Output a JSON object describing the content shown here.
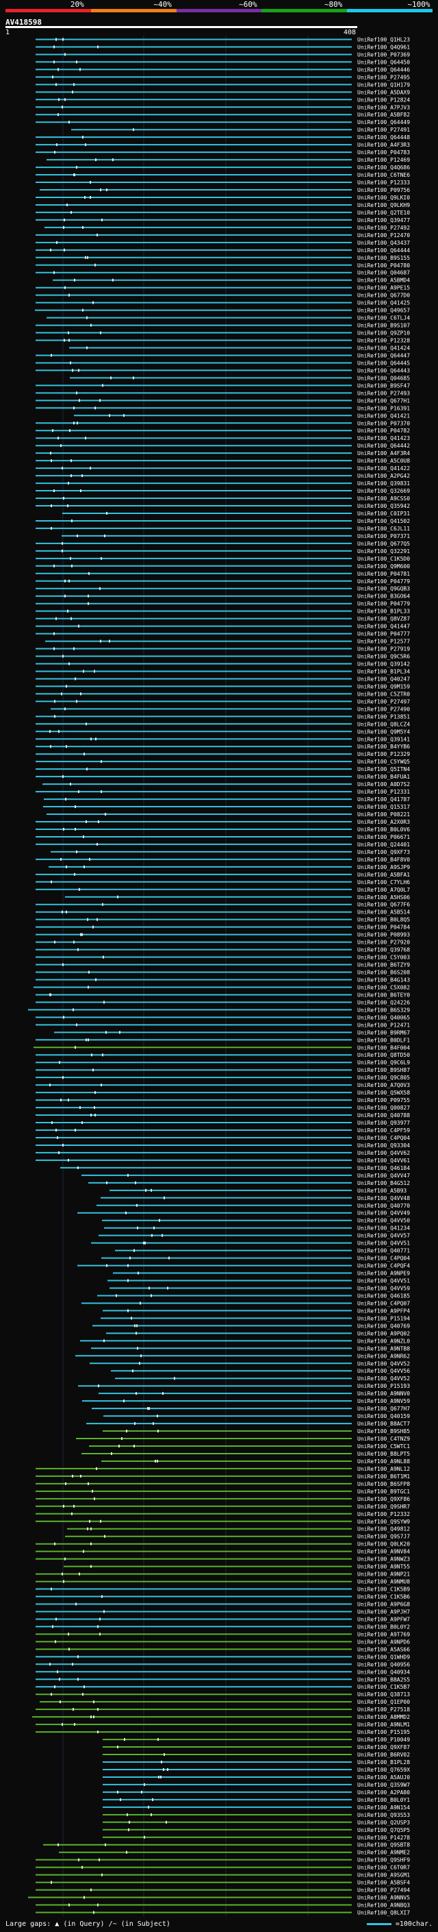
{
  "query": {
    "title": "AV418598",
    "start": "1",
    "end": "408"
  },
  "legend": {
    "labels": [
      "20%",
      "~40%",
      "~60%",
      "~80%",
      "~100%"
    ],
    "colors": [
      "#e8202a",
      "#f07f14",
      "#7a2ea0",
      "#16a416",
      "#20c8e8"
    ]
  },
  "colors": {
    "cyan": "#33c3e0",
    "green": "#5ab42a",
    "mark": "#e6e6e6"
  },
  "footer": {
    "label": "Large gaps:",
    "gap_query": "(in Query)",
    "gap_subject": "(in Subject)",
    "scale": "=100char."
  },
  "hits": [
    {
      "id": "UniRef100_Q1HL23",
      "c": "c"
    },
    {
      "id": "UniRef100_Q4Q961",
      "c": "c"
    },
    {
      "id": "UniRef100_P07369",
      "c": "c"
    },
    {
      "id": "UniRef100_Q64450",
      "c": "c"
    },
    {
      "id": "UniRef100_Q64446",
      "c": "c"
    },
    {
      "id": "UniRef100_P27495",
      "c": "c"
    },
    {
      "id": "UniRef100_Q1H179",
      "c": "c"
    },
    {
      "id": "UniRef100_A5DAX9",
      "c": "c"
    },
    {
      "id": "UniRef100_P12824",
      "c": "c"
    },
    {
      "id": "UniRef100_A7PJV3",
      "c": "c"
    },
    {
      "id": "UniRef100_A5BF82",
      "c": "c"
    },
    {
      "id": "UniRef100_Q64449",
      "c": "c"
    },
    {
      "id": "UniRef100_P27491",
      "c": "c"
    },
    {
      "id": "UniRef100_Q64448",
      "c": "c"
    },
    {
      "id": "UniRef100_A4F3R3",
      "c": "c"
    },
    {
      "id": "UniRef100_P04783",
      "c": "c"
    },
    {
      "id": "UniRef100_P12469",
      "c": "c"
    },
    {
      "id": "UniRef100_Q4Q686",
      "c": "c"
    },
    {
      "id": "UniRef100_C6TNE6",
      "c": "c"
    },
    {
      "id": "UniRef100_P12333",
      "c": "c"
    },
    {
      "id": "UniRef100_P09756",
      "c": "c"
    },
    {
      "id": "UniRef100_Q9LKI0",
      "c": "c"
    },
    {
      "id": "UniRef100_Q9LKH9",
      "c": "c"
    },
    {
      "id": "UniRef100_Q2TE10",
      "c": "c"
    },
    {
      "id": "UniRef100_Q39477",
      "c": "c"
    },
    {
      "id": "UniRef100_P27492",
      "c": "c"
    },
    {
      "id": "UniRef100_P12470",
      "c": "c"
    },
    {
      "id": "UniRef100_Q43437",
      "c": "c"
    },
    {
      "id": "UniRef100_Q64444",
      "c": "c"
    },
    {
      "id": "UniRef100_B9S155",
      "c": "c"
    },
    {
      "id": "UniRef100_P04780",
      "c": "c"
    },
    {
      "id": "UniRef100_Q04687",
      "c": "c"
    },
    {
      "id": "UniRef100_A5BMD4",
      "c": "c"
    },
    {
      "id": "UniRef100_A9PE15",
      "c": "c"
    },
    {
      "id": "UniRef100_Q677D0",
      "c": "c"
    },
    {
      "id": "UniRef100_Q41425",
      "c": "c"
    },
    {
      "id": "UniRef100_Q49657",
      "c": "c"
    },
    {
      "id": "UniRef100_C6TLJ4",
      "c": "c"
    },
    {
      "id": "UniRef100_B9S107",
      "c": "c"
    },
    {
      "id": "UniRef100_Q9ZP10",
      "c": "c"
    },
    {
      "id": "UniRef100_P12328",
      "c": "c"
    },
    {
      "id": "UniRef100_Q41424",
      "c": "c"
    },
    {
      "id": "UniRef100_Q64447",
      "c": "c"
    },
    {
      "id": "UniRef100_Q64445",
      "c": "c"
    },
    {
      "id": "UniRef100_Q64443",
      "c": "c"
    },
    {
      "id": "UniRef100_Q04685",
      "c": "c"
    },
    {
      "id": "UniRef100_B9SF47",
      "c": "c"
    },
    {
      "id": "UniRef100_P27493",
      "c": "c"
    },
    {
      "id": "UniRef100_Q677H1",
      "c": "c"
    },
    {
      "id": "UniRef100_P16391",
      "c": "c"
    },
    {
      "id": "UniRef100_Q41421",
      "c": "c"
    },
    {
      "id": "UniRef100_P07370",
      "c": "c"
    },
    {
      "id": "UniRef100_P04782",
      "c": "c"
    },
    {
      "id": "UniRef100_Q41423",
      "c": "c"
    },
    {
      "id": "UniRef100_Q64442",
      "c": "c"
    },
    {
      "id": "UniRef100_A4F3R4",
      "c": "c"
    },
    {
      "id": "UniRef100_A5C0U8",
      "c": "c"
    },
    {
      "id": "UniRef100_Q41422",
      "c": "c"
    },
    {
      "id": "UniRef100_A2PG42",
      "c": "c"
    },
    {
      "id": "UniRef100_Q39831",
      "c": "c"
    },
    {
      "id": "UniRef100_Q32669",
      "c": "c"
    },
    {
      "id": "UniRef100_A9CSS0",
      "c": "c"
    },
    {
      "id": "UniRef100_Q35942",
      "c": "c"
    },
    {
      "id": "UniRef100_C0IP31",
      "c": "c"
    },
    {
      "id": "UniRef100_Q41502",
      "c": "c"
    },
    {
      "id": "UniRef100_C6JL11",
      "c": "c"
    },
    {
      "id": "UniRef100_P07371",
      "c": "c"
    },
    {
      "id": "UniRef100_Q677Q5",
      "c": "c"
    },
    {
      "id": "UniRef100_Q32291",
      "c": "c"
    },
    {
      "id": "UniRef100_C1K5D0",
      "c": "c"
    },
    {
      "id": "UniRef100_Q9M600",
      "c": "c"
    },
    {
      "id": "UniRef100_P04781",
      "c": "c"
    },
    {
      "id": "UniRef100_P04779",
      "c": "c"
    },
    {
      "id": "UniRef100_Q9GQB3",
      "c": "c"
    },
    {
      "id": "UniRef100_B3GO64",
      "c": "c"
    },
    {
      "id": "UniRef100_P04779",
      "c": "c"
    },
    {
      "id": "UniRef100_B1PL33",
      "c": "c"
    },
    {
      "id": "UniRef100_Q8VZ87",
      "c": "c"
    },
    {
      "id": "UniRef100_Q41447",
      "c": "c"
    },
    {
      "id": "UniRef100_P04777",
      "c": "c"
    },
    {
      "id": "UniRef100_P12577",
      "c": "c"
    },
    {
      "id": "UniRef100_P27919",
      "c": "c"
    },
    {
      "id": "UniRef100_Q9C5R6",
      "c": "c"
    },
    {
      "id": "UniRef100_Q39142",
      "c": "c"
    },
    {
      "id": "UniRef100_B1PL34",
      "c": "c"
    },
    {
      "id": "UniRef100_Q40247",
      "c": "c"
    },
    {
      "id": "UniRef100_Q9M159",
      "c": "c"
    },
    {
      "id": "UniRef100_C5ZTR0",
      "c": "c"
    },
    {
      "id": "UniRef100_P27497",
      "c": "c"
    },
    {
      "id": "UniRef100_P27490",
      "c": "c"
    },
    {
      "id": "UniRef100_P13851",
      "c": "c"
    },
    {
      "id": "UniRef100_Q8LCZ4",
      "c": "c"
    },
    {
      "id": "UniRef100_Q9M5Y4",
      "c": "c"
    },
    {
      "id": "UniRef100_Q39141",
      "c": "c"
    },
    {
      "id": "UniRef100_B4YYB6",
      "c": "c"
    },
    {
      "id": "UniRef100_P12329",
      "c": "c"
    },
    {
      "id": "UniRef100_C5YWQ5",
      "c": "c"
    },
    {
      "id": "UniRef100_Q5ITN4",
      "c": "c"
    },
    {
      "id": "UniRef100_B4FUA1",
      "c": "c"
    },
    {
      "id": "UniRef100_A0D7S2",
      "c": "c"
    },
    {
      "id": "UniRef100_P12331",
      "c": "c"
    },
    {
      "id": "UniRef100_Q41787",
      "c": "c"
    },
    {
      "id": "UniRef100_Q15317",
      "c": "c"
    },
    {
      "id": "UniRef100_P08221",
      "c": "c"
    },
    {
      "id": "UniRef100_A2X0R3",
      "c": "c"
    },
    {
      "id": "UniRef100_B0L0V6",
      "c": "c"
    },
    {
      "id": "UniRef100_P06671",
      "c": "c"
    },
    {
      "id": "UniRef100_Q24401",
      "c": "c"
    },
    {
      "id": "UniRef100_Q9XF73",
      "c": "c"
    },
    {
      "id": "UniRef100_B4F8V0",
      "c": "c"
    },
    {
      "id": "UniRef100_A9SJP9",
      "c": "c"
    },
    {
      "id": "UniRef100_A5BFA1",
      "c": "c"
    },
    {
      "id": "UniRef100_C7YLH6",
      "c": "c"
    },
    {
      "id": "UniRef100_A7Q0L7",
      "c": "c"
    },
    {
      "id": "UniRef100_A5HS06",
      "c": "c"
    },
    {
      "id": "UniRef100_Q677F6",
      "c": "c"
    },
    {
      "id": "UniRef100_A5B514",
      "c": "c"
    },
    {
      "id": "UniRef100_B0L8Q5",
      "c": "c"
    },
    {
      "id": "UniRef100_P04784",
      "c": "c"
    },
    {
      "id": "UniRef100_P08993",
      "c": "c"
    },
    {
      "id": "UniRef100_P27920",
      "c": "c"
    },
    {
      "id": "UniRef100_Q39768",
      "c": "c"
    },
    {
      "id": "UniRef100_C5Y003",
      "c": "c"
    },
    {
      "id": "UniRef100_B6TZY9",
      "c": "c"
    },
    {
      "id": "UniRef100_B6S208",
      "c": "c"
    },
    {
      "id": "UniRef100_B4G143",
      "c": "c"
    },
    {
      "id": "UniRef100_C5X082",
      "c": "c"
    },
    {
      "id": "UniRef100_B6TEY0",
      "c": "c"
    },
    {
      "id": "UniRef100_Q24226",
      "c": "c"
    },
    {
      "id": "UniRef100_B6S329",
      "c": "c"
    },
    {
      "id": "UniRef100_Q40065",
      "c": "c"
    },
    {
      "id": "UniRef100_P12471",
      "c": "c"
    },
    {
      "id": "UniRef100_B9RM67",
      "c": "c"
    },
    {
      "id": "UniRef100_B0DLF1",
      "c": "c"
    },
    {
      "id": "UniRef100_B4F004",
      "c": "g"
    },
    {
      "id": "UniRef100_Q8TD50",
      "c": "c"
    },
    {
      "id": "UniRef100_Q9C6L9",
      "c": "c"
    },
    {
      "id": "UniRef100_B9SH87",
      "c": "c"
    },
    {
      "id": "UniRef100_Q9C805",
      "c": "c"
    },
    {
      "id": "UniRef100_A7Q0V3",
      "c": "c"
    },
    {
      "id": "UniRef100_Q5WX58",
      "c": "c"
    },
    {
      "id": "UniRef100_P09755",
      "c": "c"
    },
    {
      "id": "UniRef100_Q00827",
      "c": "c"
    },
    {
      "id": "UniRef100_Q40788",
      "c": "c"
    },
    {
      "id": "UniRef100_Q93977",
      "c": "c"
    },
    {
      "id": "UniRef100_C4PF59",
      "c": "c"
    },
    {
      "id": "UniRef100_C4PQ04",
      "c": "c"
    },
    {
      "id": "UniRef100_Q93304",
      "c": "c"
    },
    {
      "id": "UniRef100_Q4VV62",
      "c": "c"
    },
    {
      "id": "UniRef100_Q4VV61",
      "c": "c"
    },
    {
      "id": "UniRef100_Q46184",
      "c": "c"
    },
    {
      "id": "UniRef100_Q4VV47",
      "c": "c"
    },
    {
      "id": "UniRef100_B4G512",
      "c": "c"
    },
    {
      "id": "UniRef100_A5B93",
      "c": "c"
    },
    {
      "id": "UniRef100_Q4VV48",
      "c": "c"
    },
    {
      "id": "UniRef100_Q40770",
      "c": "c"
    },
    {
      "id": "UniRef100_Q4VV49",
      "c": "c"
    },
    {
      "id": "UniRef100_Q4VV50",
      "c": "c"
    },
    {
      "id": "UniRef100_Q41234",
      "c": "c"
    },
    {
      "id": "UniRef100_Q4VV57",
      "c": "c"
    },
    {
      "id": "UniRef100_Q4VV51",
      "c": "c"
    },
    {
      "id": "UniRef100_Q40771",
      "c": "c"
    },
    {
      "id": "UniRef100_C4PQ04",
      "c": "c"
    },
    {
      "id": "UniRef100_C4PQF4",
      "c": "c"
    },
    {
      "id": "UniRef100_A9NPE9",
      "c": "c"
    },
    {
      "id": "UniRef100_Q4VV51",
      "c": "c"
    },
    {
      "id": "UniRef100_Q4VV59",
      "c": "c"
    },
    {
      "id": "UniRef100_Q46185",
      "c": "c"
    },
    {
      "id": "UniRef100_C4PQ07",
      "c": "c"
    },
    {
      "id": "UniRef100_A9PFP4",
      "c": "c"
    },
    {
      "id": "UniRef100_P15194",
      "c": "c"
    },
    {
      "id": "UniRef100_Q40769",
      "c": "c"
    },
    {
      "id": "UniRef100_A9PQ02",
      "c": "c"
    },
    {
      "id": "UniRef100_A9NZL0",
      "c": "c"
    },
    {
      "id": "UniRef100_A9NTB8",
      "c": "c"
    },
    {
      "id": "UniRef100_A9NR62",
      "c": "c"
    },
    {
      "id": "UniRef100_Q4VV52",
      "c": "c"
    },
    {
      "id": "UniRef100_Q4VV56",
      "c": "c"
    },
    {
      "id": "UniRef100_Q4VV52",
      "c": "c"
    },
    {
      "id": "UniRef100_P15193",
      "c": "c"
    },
    {
      "id": "UniRef100_A9NNV0",
      "c": "c"
    },
    {
      "id": "UniRef100_A9NV59",
      "c": "c"
    },
    {
      "id": "UniRef100_Q677H7",
      "c": "c"
    },
    {
      "id": "UniRef100_Q40159",
      "c": "c"
    },
    {
      "id": "UniRef100_B8ACT7",
      "c": "c"
    },
    {
      "id": "UniRef100_B9SH85",
      "c": "g"
    },
    {
      "id": "UniRef100_C4TNZ9",
      "c": "g"
    },
    {
      "id": "UniRef100_C5WTC1",
      "c": "g"
    },
    {
      "id": "UniRef100_B8LPT5",
      "c": "g"
    },
    {
      "id": "UniRef100_A9NL88",
      "c": "g"
    },
    {
      "id": "UniRef100_A9NL12",
      "c": "g"
    },
    {
      "id": "UniRef100_B6T1M1",
      "c": "g"
    },
    {
      "id": "UniRef100_B6SFP8",
      "c": "g"
    },
    {
      "id": "UniRef100_B9TGC1",
      "c": "g"
    },
    {
      "id": "UniRef100_Q9XF86",
      "c": "g"
    },
    {
      "id": "UniRef100_Q9SHR7",
      "c": "g"
    },
    {
      "id": "UniRef100_P12332",
      "c": "g"
    },
    {
      "id": "UniRef100_Q9SYW9",
      "c": "g"
    },
    {
      "id": "UniRef100_Q49812",
      "c": "g"
    },
    {
      "id": "UniRef100_Q9S7J7",
      "c": "g"
    },
    {
      "id": "UniRef100_Q0LK20",
      "c": "g"
    },
    {
      "id": "UniRef100_A9NV84",
      "c": "g"
    },
    {
      "id": "UniRef100_A9NWZ3",
      "c": "g"
    },
    {
      "id": "UniRef100_A9NT55",
      "c": "g"
    },
    {
      "id": "UniRef100_A9NP21",
      "c": "g"
    },
    {
      "id": "UniRef100_A9NMU8",
      "c": "g"
    },
    {
      "id": "UniRef100_C1K5B9",
      "c": "c"
    },
    {
      "id": "UniRef100_C1K5B6",
      "c": "c"
    },
    {
      "id": "UniRef100_A9P6G8",
      "c": "c"
    },
    {
      "id": "UniRef100_A9PJH7",
      "c": "c"
    },
    {
      "id": "UniRef100_A9PFW7",
      "c": "c"
    },
    {
      "id": "UniRef100_B0L0Y2",
      "c": "c"
    },
    {
      "id": "UniRef100_A9T769",
      "c": "g"
    },
    {
      "id": "UniRef100_A9NPD6",
      "c": "g"
    },
    {
      "id": "UniRef100_A5AS66",
      "c": "g"
    },
    {
      "id": "UniRef100_Q1WHD9",
      "c": "c"
    },
    {
      "id": "UniRef100_Q40956",
      "c": "c"
    },
    {
      "id": "UniRef100_Q40934",
      "c": "c"
    },
    {
      "id": "UniRef100_B8A2S5",
      "c": "c"
    },
    {
      "id": "UniRef100_C1K5B7",
      "c": "c"
    },
    {
      "id": "UniRef100_Q38713",
      "c": "g"
    },
    {
      "id": "UniRef100_Q1EP00",
      "c": "g"
    },
    {
      "id": "UniRef100_P27518",
      "c": "g"
    },
    {
      "id": "UniRef100_A8MMD2",
      "c": "g"
    },
    {
      "id": "UniRef100_A9NLM1",
      "c": "g"
    },
    {
      "id": "UniRef100_P15195",
      "c": "g"
    },
    {
      "id": "UniRef100_P10049",
      "c": "g"
    },
    {
      "id": "UniRef100_Q9XF87",
      "c": "g"
    },
    {
      "id": "UniRef100_B6RV02",
      "c": "g"
    },
    {
      "id": "UniRef100_B1PL28",
      "c": "c"
    },
    {
      "id": "UniRef100_Q7659X",
      "c": "c"
    },
    {
      "id": "UniRef100_A5AUJ0",
      "c": "c"
    },
    {
      "id": "UniRef100_Q3S9W7",
      "c": "c"
    },
    {
      "id": "UniRef100_A2PA80",
      "c": "c"
    },
    {
      "id": "UniRef100_B0L0Y1",
      "c": "c"
    },
    {
      "id": "UniRef100_A9N154",
      "c": "c"
    },
    {
      "id": "UniRef100_Q93S53",
      "c": "g"
    },
    {
      "id": "UniRef100_Q2USP3",
      "c": "g"
    },
    {
      "id": "UniRef100_Q7Q5P5",
      "c": "g"
    },
    {
      "id": "UniRef100_P14278",
      "c": "g"
    },
    {
      "id": "UniRef100_Q9SBT8",
      "c": "g"
    },
    {
      "id": "UniRef100_A9NME2",
      "c": "g"
    },
    {
      "id": "UniRef100_Q9SHF9",
      "c": "g"
    },
    {
      "id": "UniRef100_C6T0R7",
      "c": "g"
    },
    {
      "id": "UniRef100_A9SGM1",
      "c": "g"
    },
    {
      "id": "UniRef100_A5BSF4",
      "c": "g"
    },
    {
      "id": "UniRef100_P27494",
      "c": "g"
    },
    {
      "id": "UniRef100_A9NNV5",
      "c": "g"
    },
    {
      "id": "UniRef100_A9NBQ3",
      "c": "g"
    },
    {
      "id": "UniRef100_Q8LXI7",
      "c": "g"
    }
  ]
}
